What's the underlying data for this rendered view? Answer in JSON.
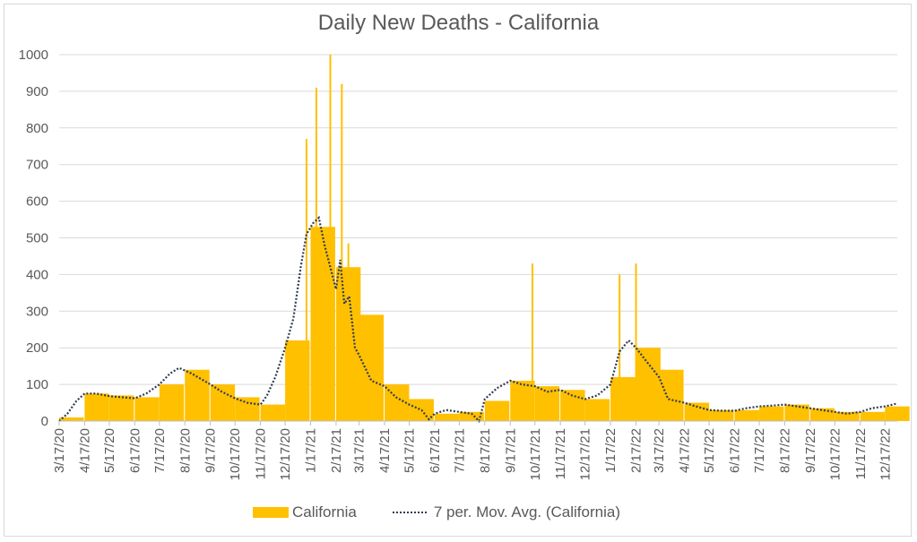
{
  "chart_data": {
    "type": "bar",
    "title": "Daily New Deaths - California",
    "xlabel": "",
    "ylabel": "",
    "ylim": [
      0,
      1000
    ],
    "yticks": [
      0,
      100,
      200,
      300,
      400,
      500,
      600,
      700,
      800,
      900,
      1000
    ],
    "xticks": [
      "3/17/20",
      "4/17/20",
      "5/17/20",
      "6/17/20",
      "7/17/20",
      "8/17/20",
      "9/17/20",
      "10/17/20",
      "11/17/20",
      "12/17/20",
      "1/17/21",
      "2/17/21",
      "3/17/21",
      "4/17/21",
      "5/17/21",
      "6/17/21",
      "7/17/21",
      "8/17/21",
      "9/17/21",
      "10/17/21",
      "11/17/21",
      "12/17/21",
      "1/17/22",
      "2/17/22",
      "3/17/22",
      "4/17/22",
      "5/17/22",
      "6/17/22",
      "7/17/22",
      "8/17/22",
      "9/17/22",
      "10/17/22",
      "11/17/22",
      "12/17/22"
    ],
    "grid": true,
    "legend_position": "bottom",
    "series": [
      {
        "name": "California",
        "kind": "bar",
        "color": "#ffc000",
        "resolution": "monthly average (estimated)",
        "x": [
          "3/17/20",
          "4/17/20",
          "5/17/20",
          "6/17/20",
          "7/17/20",
          "8/17/20",
          "9/17/20",
          "10/17/20",
          "11/17/20",
          "12/17/20",
          "1/17/21",
          "2/17/21",
          "3/17/21",
          "4/17/21",
          "5/17/21",
          "6/17/21",
          "7/17/21",
          "8/17/21",
          "9/17/21",
          "10/17/21",
          "11/17/21",
          "12/17/21",
          "1/17/22",
          "2/17/22",
          "3/17/22",
          "4/17/22",
          "5/17/22",
          "6/17/22",
          "7/17/22",
          "8/17/22",
          "9/17/22",
          "10/17/22",
          "11/17/22",
          "12/17/22"
        ],
        "values": [
          10,
          75,
          70,
          65,
          100,
          140,
          100,
          65,
          45,
          220,
          530,
          420,
          290,
          100,
          60,
          20,
          25,
          55,
          110,
          95,
          85,
          60,
          120,
          200,
          140,
          50,
          30,
          30,
          40,
          45,
          35,
          25,
          25,
          40
        ],
        "peaks": [
          {
            "x": "1/12/21",
            "value": 770
          },
          {
            "x": "1/24/21",
            "value": 910
          },
          {
            "x": "2/10/21",
            "value": 1000
          },
          {
            "x": "2/24/21",
            "value": 920
          },
          {
            "x": "3/4/21",
            "value": 485
          },
          {
            "x": "10/14/21",
            "value": 430
          },
          {
            "x": "1/28/22",
            "value": 400
          },
          {
            "x": "2/17/22",
            "value": 430
          }
        ]
      },
      {
        "name": "7 per. Mov. Avg. (California)",
        "kind": "line",
        "style": "dotted",
        "color": "#2f3b55",
        "resolution": "approximate",
        "points": [
          [
            "3/17/20",
            0
          ],
          [
            "3/27/20",
            20
          ],
          [
            "4/7/20",
            55
          ],
          [
            "4/17/20",
            75
          ],
          [
            "5/1/20",
            75
          ],
          [
            "5/17/20",
            68
          ],
          [
            "6/1/20",
            65
          ],
          [
            "6/17/20",
            62
          ],
          [
            "7/1/20",
            75
          ],
          [
            "7/17/20",
            100
          ],
          [
            "7/30/20",
            130
          ],
          [
            "8/10/20",
            145
          ],
          [
            "8/25/20",
            130
          ],
          [
            "9/17/20",
            100
          ],
          [
            "10/1/20",
            80
          ],
          [
            "10/17/20",
            62
          ],
          [
            "11/1/20",
            50
          ],
          [
            "11/17/20",
            45
          ],
          [
            "11/25/20",
            70
          ],
          [
            "12/5/20",
            120
          ],
          [
            "12/17/20",
            200
          ],
          [
            "12/27/20",
            280
          ],
          [
            "1/5/21",
            420
          ],
          [
            "1/12/21",
            510
          ],
          [
            "1/20/21",
            540
          ],
          [
            "1/27/21",
            555
          ],
          [
            "2/3/21",
            480
          ],
          [
            "2/10/21",
            420
          ],
          [
            "2/17/21",
            360
          ],
          [
            "2/22/21",
            440
          ],
          [
            "2/27/21",
            320
          ],
          [
            "3/5/21",
            340
          ],
          [
            "3/12/21",
            200
          ],
          [
            "3/17/21",
            180
          ],
          [
            "4/1/21",
            110
          ],
          [
            "4/17/21",
            95
          ],
          [
            "5/1/21",
            65
          ],
          [
            "5/17/21",
            45
          ],
          [
            "6/1/21",
            30
          ],
          [
            "6/10/21",
            5
          ],
          [
            "6/17/21",
            20
          ],
          [
            "7/1/21",
            30
          ],
          [
            "7/17/21",
            25
          ],
          [
            "8/1/21",
            20
          ],
          [
            "8/10/21",
            0
          ],
          [
            "8/17/21",
            60
          ],
          [
            "9/1/21",
            90
          ],
          [
            "9/17/21",
            110
          ],
          [
            "10/1/21",
            100
          ],
          [
            "10/17/21",
            95
          ],
          [
            "11/1/21",
            80
          ],
          [
            "11/17/21",
            85
          ],
          [
            "12/1/21",
            70
          ],
          [
            "12/17/21",
            60
          ],
          [
            "1/1/22",
            70
          ],
          [
            "1/17/22",
            100
          ],
          [
            "1/28/22",
            190
          ],
          [
            "2/8/22",
            220
          ],
          [
            "2/17/22",
            200
          ],
          [
            "3/1/22",
            165
          ],
          [
            "3/17/22",
            120
          ],
          [
            "3/28/22",
            60
          ],
          [
            "4/17/22",
            50
          ],
          [
            "5/1/22",
            40
          ],
          [
            "5/17/22",
            30
          ],
          [
            "6/1/22",
            28
          ],
          [
            "6/17/22",
            28
          ],
          [
            "7/1/22",
            35
          ],
          [
            "7/17/22",
            40
          ],
          [
            "8/1/22",
            42
          ],
          [
            "8/17/22",
            45
          ],
          [
            "9/1/22",
            40
          ],
          [
            "9/17/22",
            35
          ],
          [
            "10/1/22",
            30
          ],
          [
            "10/17/22",
            25
          ],
          [
            "11/1/22",
            20
          ],
          [
            "11/17/22",
            25
          ],
          [
            "12/1/22",
            35
          ],
          [
            "12/17/22",
            40
          ],
          [
            "1/1/23",
            48
          ]
        ]
      }
    ]
  },
  "legend": {
    "bar_label": "California",
    "line_label": "7 per. Mov. Avg. (California)"
  }
}
